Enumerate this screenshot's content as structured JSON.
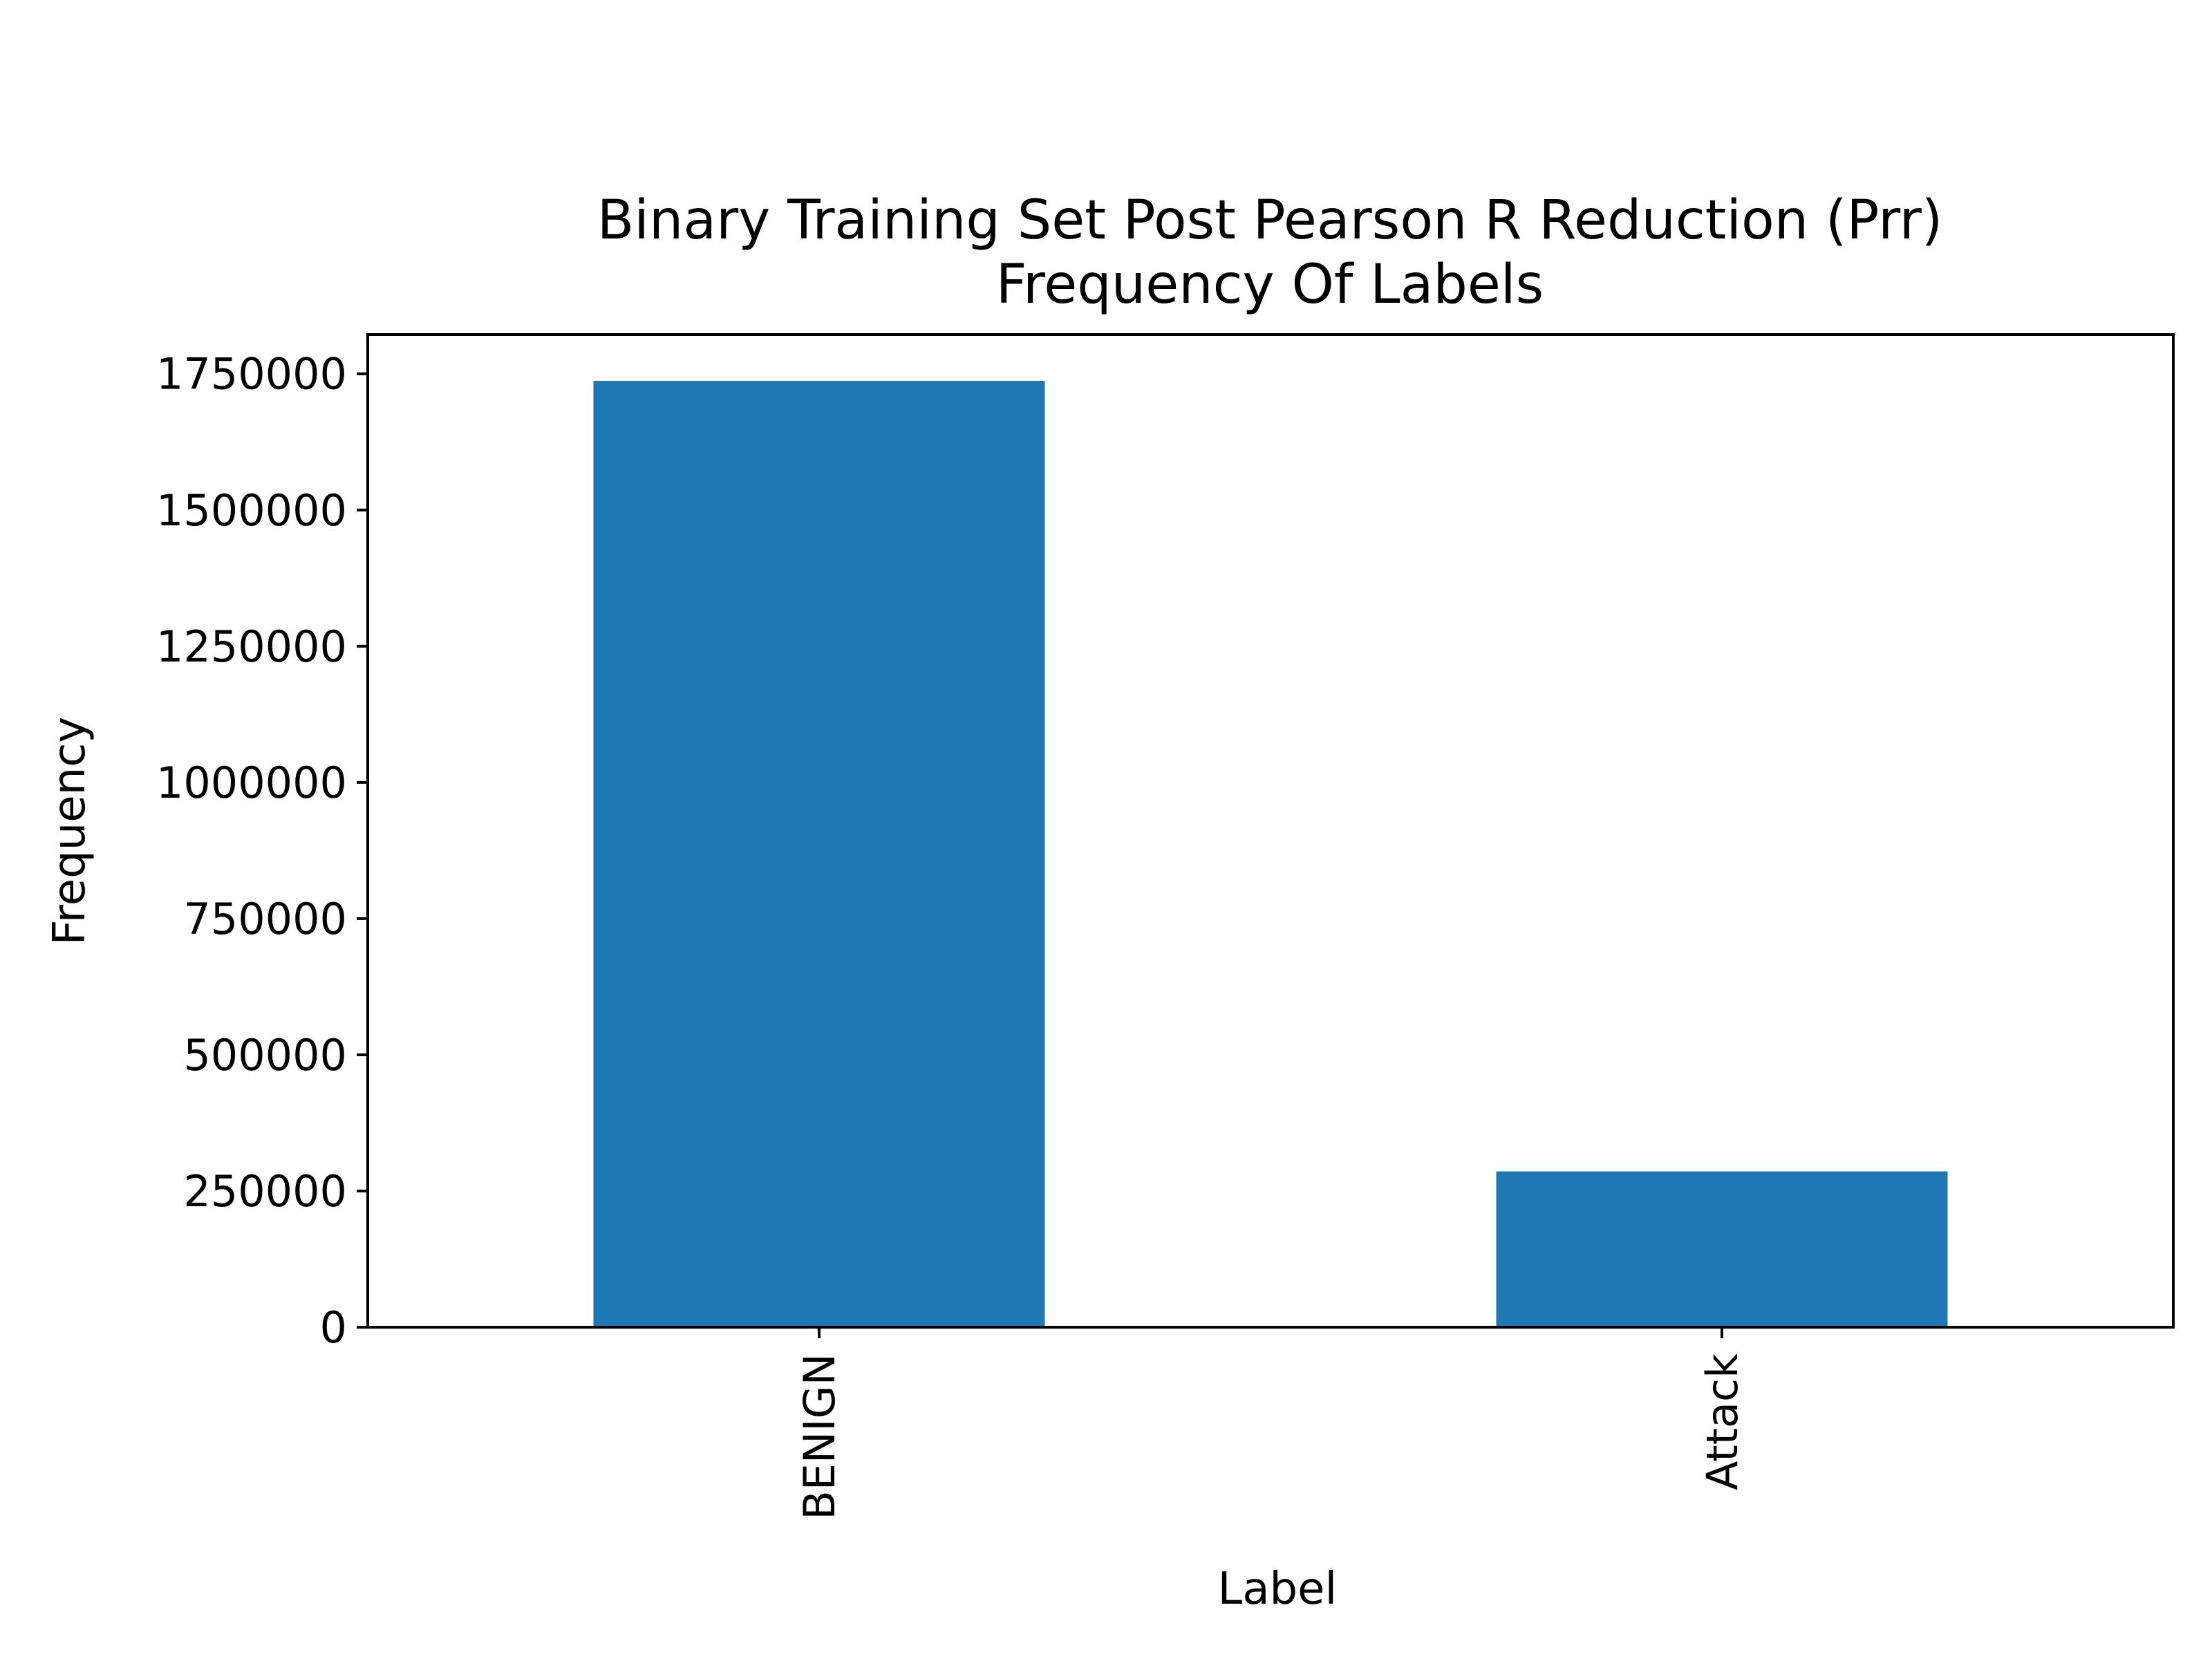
{
  "chart_data": {
    "type": "bar",
    "title": [
      "Binary Training Set Post Pearson R Reduction (Prr)",
      "Frequency Of  Labels"
    ],
    "xlabel": "Label",
    "ylabel": "Frequency",
    "categories": [
      "BENIGN",
      "Attack"
    ],
    "values": [
      1737000,
      286000
    ],
    "ylim": [
      0,
      1822000
    ],
    "yticks": [
      0,
      250000,
      500000,
      750000,
      1000000,
      1250000,
      1500000,
      1750000
    ],
    "x_tick_rotation": "vertical",
    "grid": false,
    "legend": "none",
    "bar_color": "#1f77b4",
    "axes_color": "#000000"
  }
}
